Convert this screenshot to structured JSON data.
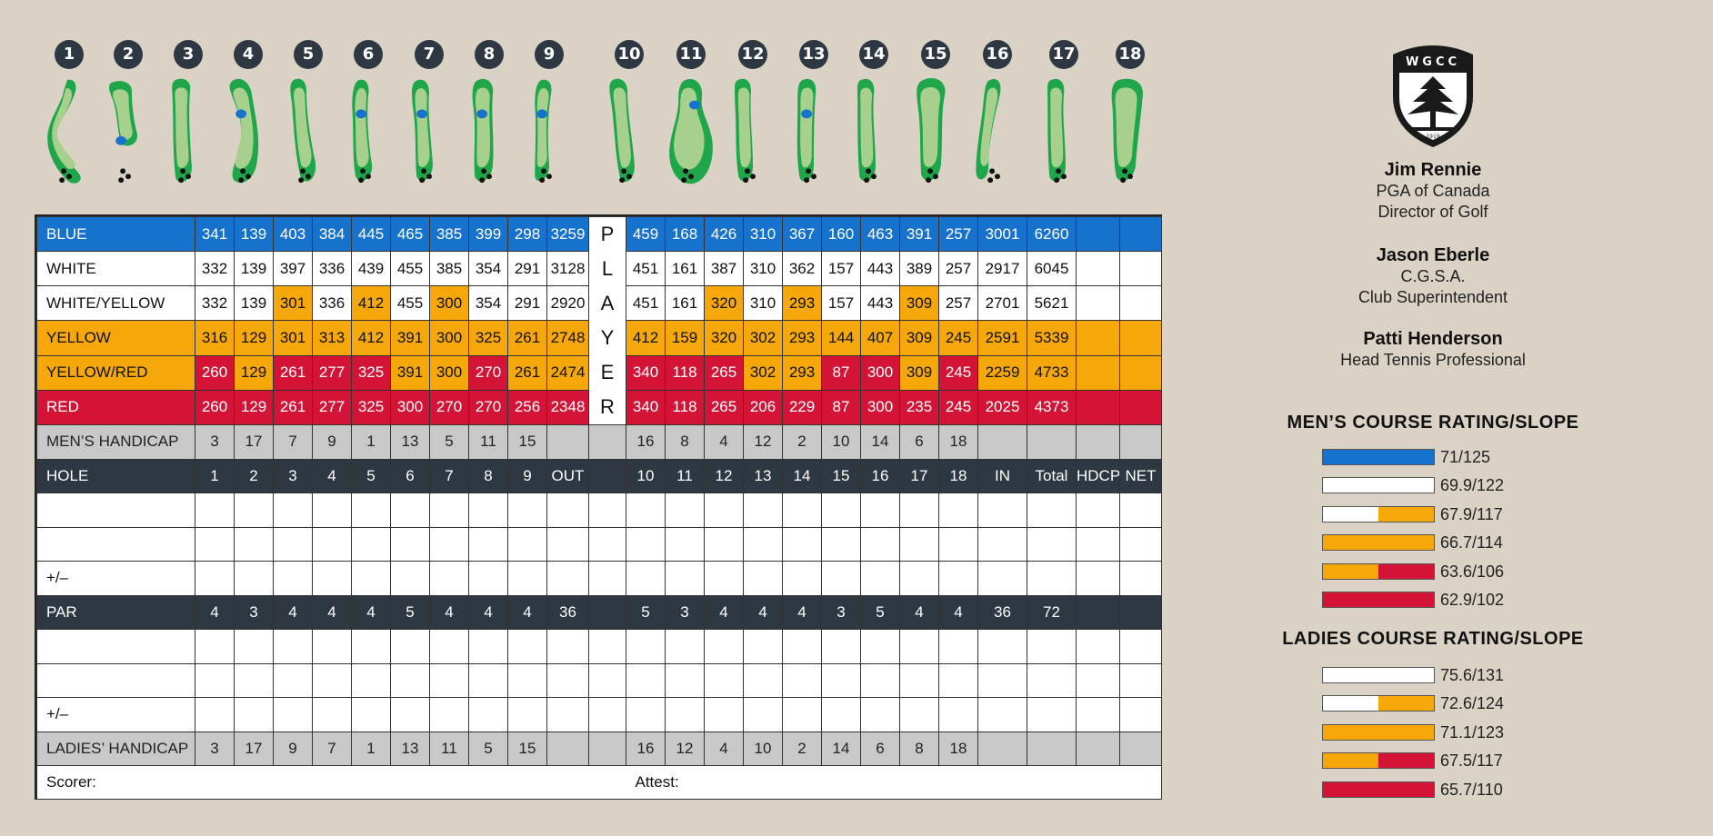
{
  "colors": {
    "blue": "#1672cc",
    "white": "#ffffff",
    "yellow": "#f6a80a",
    "red": "#d31436",
    "gray": "#c8c8c8",
    "dark": "#2d3842",
    "green": "#1fa64a"
  },
  "holes": [
    "1",
    "2",
    "3",
    "4",
    "5",
    "6",
    "7",
    "8",
    "9",
    "10",
    "11",
    "12",
    "13",
    "14",
    "15",
    "16",
    "17",
    "18"
  ],
  "player_letters": [
    "P",
    "L",
    "A",
    "Y",
    "E",
    "R"
  ],
  "logo": {
    "text": "WGCC",
    "year": "1919"
  },
  "rows": [
    {
      "label": "BLUE",
      "style": "blue",
      "front": [
        "341",
        "139",
        "403",
        "384",
        "445",
        "465",
        "385",
        "399",
        "298",
        "3259"
      ],
      "back": [
        "459",
        "168",
        "426",
        "310",
        "367",
        "160",
        "463",
        "391",
        "257",
        "3001",
        "6260"
      ],
      "tail": [
        "",
        ""
      ]
    },
    {
      "label": "WHITE",
      "style": "white",
      "front": [
        "332",
        "139",
        "397",
        "336",
        "439",
        "455",
        "385",
        "354",
        "291",
        "3128"
      ],
      "back": [
        "451",
        "161",
        "387",
        "310",
        "362",
        "157",
        "443",
        "389",
        "257",
        "2917",
        "6045"
      ],
      "tail": [
        "",
        ""
      ]
    },
    {
      "label": "WHITE/YELLOW",
      "style": "white",
      "front": [
        "332",
        "139",
        "301",
        "336",
        "412",
        "455",
        "300",
        "354",
        "291",
        "2920"
      ],
      "back": [
        "451",
        "161",
        "320",
        "310",
        "293",
        "157",
        "443",
        "309",
        "257",
        "2701",
        "5621"
      ],
      "tail": [
        "",
        ""
      ],
      "front_hl": {
        "2": "y",
        "4": "y",
        "6": "y"
      },
      "back_hl": {
        "2": "y",
        "4": "y",
        "7": "y"
      }
    },
    {
      "label": "YELLOW",
      "style": "yellow",
      "front": [
        "316",
        "129",
        "301",
        "313",
        "412",
        "391",
        "300",
        "325",
        "261",
        "2748"
      ],
      "back": [
        "412",
        "159",
        "320",
        "302",
        "293",
        "144",
        "407",
        "309",
        "245",
        "2591",
        "5339"
      ],
      "tail": [
        "",
        ""
      ]
    },
    {
      "label": "YELLOW/RED",
      "style": "yellow",
      "front": [
        "260",
        "129",
        "261",
        "277",
        "325",
        "391",
        "300",
        "270",
        "261",
        "2474"
      ],
      "back": [
        "340",
        "118",
        "265",
        "302",
        "293",
        "87",
        "300",
        "309",
        "245",
        "2259",
        "4733"
      ],
      "tail": [
        "",
        ""
      ],
      "front_hl": {
        "0": "r",
        "2": "r",
        "3": "r",
        "4": "r",
        "7": "r"
      },
      "back_hl": {
        "0": "r",
        "1": "r",
        "2": "r",
        "5": "r",
        "6": "r",
        "8": "r"
      }
    },
    {
      "label": "RED",
      "style": "red",
      "front": [
        "260",
        "129",
        "261",
        "277",
        "325",
        "300",
        "270",
        "270",
        "256",
        "2348"
      ],
      "back": [
        "340",
        "118",
        "265",
        "206",
        "229",
        "87",
        "300",
        "235",
        "245",
        "2025",
        "4373"
      ],
      "tail": [
        "",
        ""
      ]
    },
    {
      "label": "MEN’S HANDICAP",
      "style": "gray",
      "front": [
        "3",
        "17",
        "7",
        "9",
        "1",
        "13",
        "5",
        "11",
        "15",
        ""
      ],
      "back": [
        "16",
        "8",
        "4",
        "12",
        "2",
        "10",
        "14",
        "6",
        "18",
        "",
        ""
      ],
      "tail": [
        "",
        ""
      ],
      "mid": ""
    },
    {
      "label": "HOLE",
      "style": "dark",
      "front": [
        "1",
        "2",
        "3",
        "4",
        "5",
        "6",
        "7",
        "8",
        "9",
        "OUT"
      ],
      "back": [
        "10",
        "11",
        "12",
        "13",
        "14",
        "15",
        "16",
        "17",
        "18",
        "IN",
        "Total"
      ],
      "tail": [
        "HDCP",
        "NET"
      ],
      "mid": ""
    },
    {
      "label": "",
      "style": "empty",
      "front": [
        "",
        "",
        "",
        "",
        "",
        "",
        "",
        "",
        "",
        ""
      ],
      "back": [
        "",
        "",
        "",
        "",
        "",
        "",
        "",
        "",
        "",
        "",
        ""
      ],
      "tail": [
        "",
        ""
      ],
      "mid": ""
    },
    {
      "label": "",
      "style": "empty",
      "front": [
        "",
        "",
        "",
        "",
        "",
        "",
        "",
        "",
        "",
        ""
      ],
      "back": [
        "",
        "",
        "",
        "",
        "",
        "",
        "",
        "",
        "",
        "",
        ""
      ],
      "tail": [
        "",
        ""
      ],
      "mid": ""
    },
    {
      "label": "+/–",
      "style": "empty",
      "front": [
        "",
        "",
        "",
        "",
        "",
        "",
        "",
        "",
        "",
        ""
      ],
      "back": [
        "",
        "",
        "",
        "",
        "",
        "",
        "",
        "",
        "",
        "",
        ""
      ],
      "tail": [
        "",
        ""
      ],
      "mid": ""
    },
    {
      "label": "PAR",
      "style": "dark",
      "front": [
        "4",
        "3",
        "4",
        "4",
        "4",
        "5",
        "4",
        "4",
        "4",
        "36"
      ],
      "back": [
        "5",
        "3",
        "4",
        "4",
        "4",
        "3",
        "5",
        "4",
        "4",
        "36",
        "72"
      ],
      "tail": [
        "",
        ""
      ],
      "mid": ""
    },
    {
      "label": "",
      "style": "empty",
      "front": [
        "",
        "",
        "",
        "",
        "",
        "",
        "",
        "",
        "",
        ""
      ],
      "back": [
        "",
        "",
        "",
        "",
        "",
        "",
        "",
        "",
        "",
        "",
        ""
      ],
      "tail": [
        "",
        ""
      ],
      "mid": ""
    },
    {
      "label": "",
      "style": "empty",
      "front": [
        "",
        "",
        "",
        "",
        "",
        "",
        "",
        "",
        "",
        ""
      ],
      "back": [
        "",
        "",
        "",
        "",
        "",
        "",
        "",
        "",
        "",
        "",
        ""
      ],
      "tail": [
        "",
        ""
      ],
      "mid": ""
    },
    {
      "label": "+/–",
      "style": "empty",
      "front": [
        "",
        "",
        "",
        "",
        "",
        "",
        "",
        "",
        "",
        ""
      ],
      "back": [
        "",
        "",
        "",
        "",
        "",
        "",
        "",
        "",
        "",
        "",
        ""
      ],
      "tail": [
        "",
        ""
      ],
      "mid": ""
    },
    {
      "label": "LADIES’ HANDICAP",
      "style": "gray",
      "front": [
        "3",
        "17",
        "9",
        "7",
        "1",
        "13",
        "11",
        "5",
        "15",
        ""
      ],
      "back": [
        "16",
        "12",
        "4",
        "10",
        "2",
        "14",
        "6",
        "8",
        "18",
        "",
        ""
      ],
      "tail": [
        "",
        ""
      ],
      "mid": ""
    }
  ],
  "signatures": {
    "scorer": "Scorer:",
    "attest": "Attest:"
  },
  "staff": [
    {
      "name": "Jim Rennie",
      "lines": [
        "PGA of Canada",
        "Director of Golf"
      ]
    },
    {
      "name": "Jason Eberle",
      "lines": [
        "C.G.S.A.",
        "Club Superintendent"
      ]
    },
    {
      "name": "Patti Henderson",
      "lines": [
        "Head Tennis Professional"
      ]
    }
  ],
  "mens_ratings": {
    "title": "MEN’S COURSE RATING/SLOPE",
    "items": [
      {
        "colors": [
          "blue"
        ],
        "value": "71/125"
      },
      {
        "colors": [
          "white"
        ],
        "value": "69.9/122"
      },
      {
        "colors": [
          "white",
          "yellow"
        ],
        "value": "67.9/117"
      },
      {
        "colors": [
          "yellow"
        ],
        "value": "66.7/114"
      },
      {
        "colors": [
          "yellow",
          "red"
        ],
        "value": "63.6/106"
      },
      {
        "colors": [
          "red"
        ],
        "value": "62.9/102"
      }
    ]
  },
  "ladies_ratings": {
    "title": "LADIES COURSE RATING/SLOPE",
    "items": [
      {
        "colors": [
          "white"
        ],
        "value": "75.6/131"
      },
      {
        "colors": [
          "white",
          "yellow"
        ],
        "value": "72.6/124"
      },
      {
        "colors": [
          "yellow"
        ],
        "value": "71.1/123"
      },
      {
        "colors": [
          "yellow",
          "red"
        ],
        "value": "67.5/117"
      },
      {
        "colors": [
          "red"
        ],
        "value": "65.7/110"
      }
    ]
  }
}
